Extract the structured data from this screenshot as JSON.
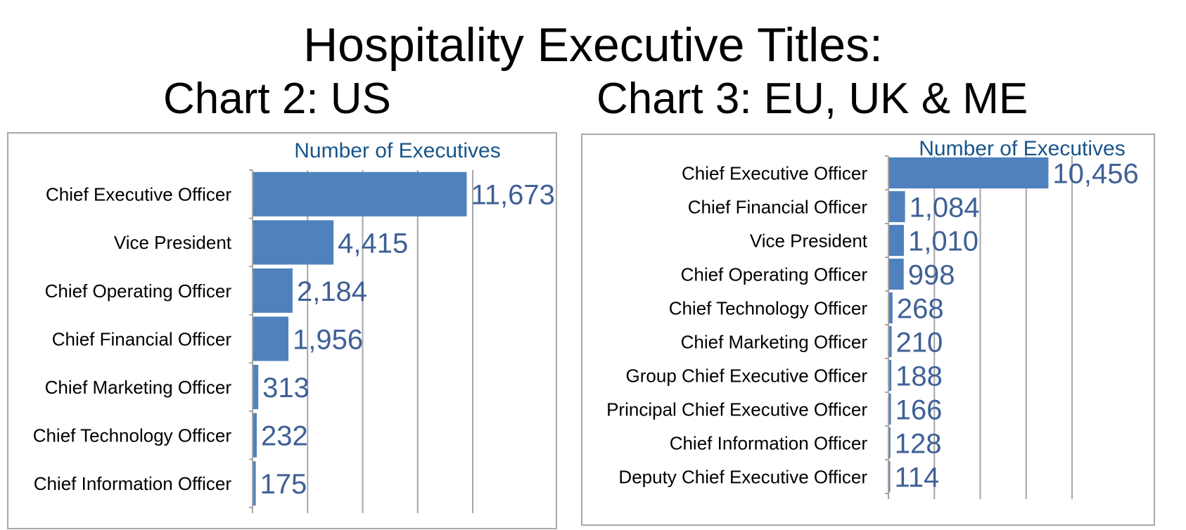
{
  "title": "Hospitality Executive Titles:",
  "colors": {
    "bar": "#4f81bd",
    "label": "#3f6096",
    "axis_title": "#17558a",
    "grid": "#a6a6a6",
    "text": "#000000"
  },
  "chart_data": [
    {
      "type": "bar",
      "orientation": "horizontal",
      "title": "Chart 2: US",
      "xlabel": "Number of Executives",
      "grid": true,
      "categories": [
        "Chief Executive Officer",
        "Vice President",
        "Chief Operating Officer",
        "Chief Financial Officer",
        "Chief Marketing Officer",
        "Chief Technology Officer",
        "Chief Information Officer"
      ],
      "values": [
        11673,
        4415,
        2184,
        1956,
        313,
        232,
        175
      ],
      "value_labels": [
        "11,673",
        "4,415",
        "2,184",
        "1,956",
        "313",
        "232",
        "175"
      ],
      "xlim": [
        0,
        12000
      ]
    },
    {
      "type": "bar",
      "orientation": "horizontal",
      "title": "Chart 3: EU, UK & ME",
      "xlabel": "Number of Executives",
      "grid": true,
      "categories": [
        "Chief Executive Officer",
        "Chief Financial Officer",
        "Vice President",
        "Chief Operating Officer",
        "Chief Technology Officer",
        "Chief Marketing Officer",
        "Group Chief Executive Officer",
        "Principal Chief Executive Officer",
        "Chief Information Officer",
        "Deputy Chief Executive Officer"
      ],
      "values": [
        10456,
        1084,
        1010,
        998,
        268,
        210,
        188,
        166,
        128,
        114
      ],
      "value_labels": [
        "10,456",
        "1,084",
        "1,010",
        "998",
        "268",
        "210",
        "188",
        "166",
        "128",
        "114"
      ],
      "xlim": [
        0,
        12000
      ]
    }
  ]
}
